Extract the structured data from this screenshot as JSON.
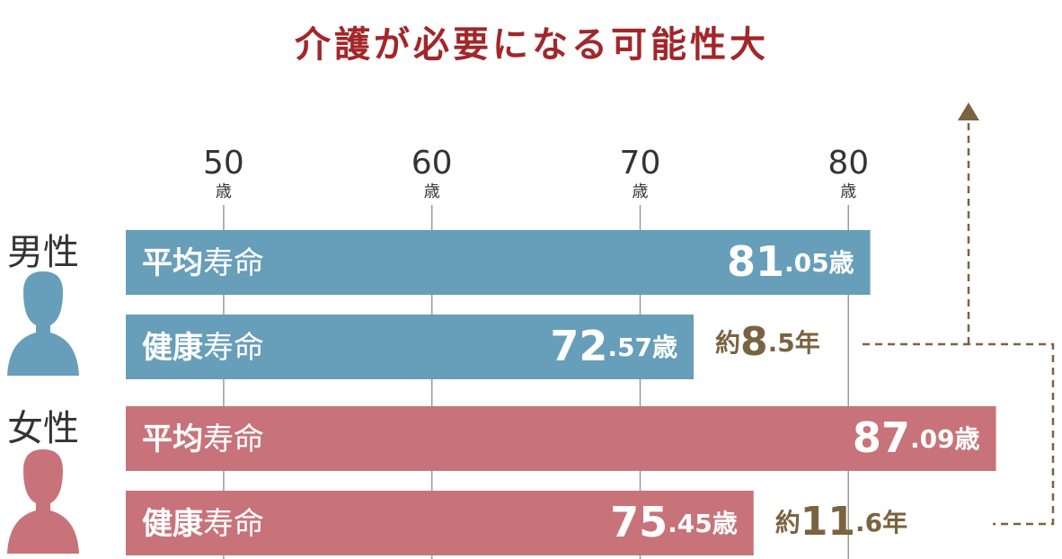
{
  "chart_data": {
    "type": "hbar",
    "title": "介護が必要になる可能性大",
    "categories": [
      "平均寿命",
      "健康寿命"
    ],
    "series": [
      {
        "name": "男性",
        "color": "#679eba",
        "values": [
          81.05,
          72.57
        ],
        "value_labels": [
          "81.05歳",
          "72.57歳"
        ]
      },
      {
        "name": "女性",
        "color": "#c87379",
        "values": [
          87.09,
          75.45
        ],
        "value_labels": [
          "87.09歳",
          "75.45歳"
        ]
      }
    ],
    "annotations": [
      "約8.5年",
      "約11.6年"
    ],
    "x_unit": "歳",
    "xlim": [
      45.3,
      90
    ],
    "xticks": [
      50,
      60,
      70,
      80
    ],
    "grid": true
  }
}
